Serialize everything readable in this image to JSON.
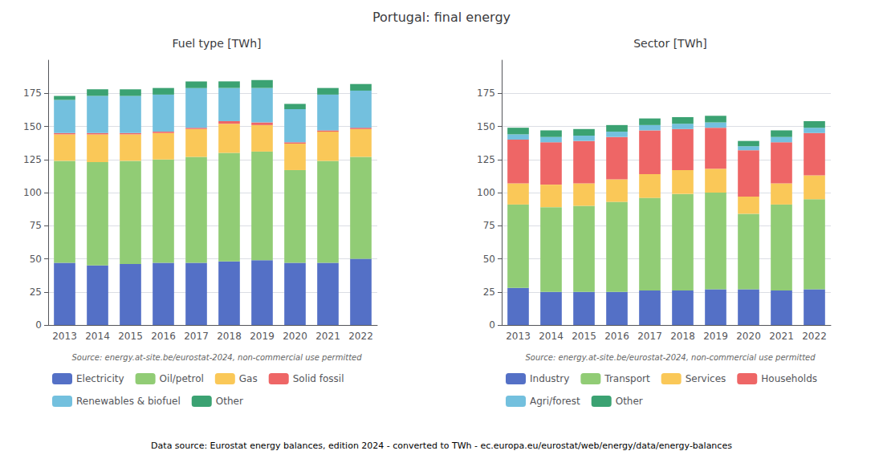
{
  "title": "Portugal: final energy",
  "footer": "Data source: Eurostat energy balances, edition 2024 - converted to TWh - ec.europa.eu/eurostat/web/energy/data/energy-balances",
  "chart_data": [
    {
      "type": "bar",
      "stacked": true,
      "title": "Fuel type [TWh]",
      "annotation": "Source: energy.at-site.be/eurostat-2024, non-commercial use permitted",
      "categories": [
        "2013",
        "2014",
        "2015",
        "2016",
        "2017",
        "2018",
        "2019",
        "2020",
        "2021",
        "2022"
      ],
      "series": [
        {
          "name": "Electricity",
          "values": [
            47,
            45,
            46,
            47,
            47,
            48,
            49,
            47,
            47,
            50
          ]
        },
        {
          "name": "Oil/petrol",
          "values": [
            77,
            78,
            78,
            78,
            80,
            82,
            82,
            70,
            77,
            77
          ]
        },
        {
          "name": "Gas",
          "values": [
            20,
            21,
            20,
            20,
            21,
            22,
            20,
            20,
            22,
            21
          ]
        },
        {
          "name": "Solid fossil",
          "values": [
            1,
            1,
            1,
            1,
            1,
            2,
            2,
            1,
            1,
            1
          ]
        },
        {
          "name": "Renewables & biofuel",
          "values": [
            25,
            28,
            28,
            28,
            30,
            25,
            26,
            25,
            27,
            28
          ]
        },
        {
          "name": "Other",
          "values": [
            3,
            5,
            5,
            5,
            5,
            5,
            6,
            4,
            5,
            5
          ]
        }
      ],
      "ylim": [
        0,
        200
      ],
      "yticks": [
        0,
        25,
        50,
        75,
        100,
        125,
        150,
        175
      ],
      "grid": true,
      "legend": "bottom"
    },
    {
      "type": "bar",
      "stacked": true,
      "title": "Sector [TWh]",
      "annotation": "Source: energy.at-site.be/eurostat-2024, non-commercial use permitted",
      "categories": [
        "2013",
        "2014",
        "2015",
        "2016",
        "2017",
        "2018",
        "2019",
        "2020",
        "2021",
        "2022"
      ],
      "series": [
        {
          "name": "Industry",
          "values": [
            28,
            25,
            25,
            25,
            26,
            26,
            27,
            27,
            26,
            27
          ]
        },
        {
          "name": "Transport",
          "values": [
            63,
            64,
            65,
            68,
            70,
            73,
            73,
            57,
            65,
            68
          ]
        },
        {
          "name": "Services",
          "values": [
            16,
            17,
            17,
            17,
            18,
            18,
            18,
            13,
            16,
            18
          ]
        },
        {
          "name": "Households",
          "values": [
            33,
            32,
            32,
            32,
            33,
            31,
            31,
            35,
            31,
            32
          ]
        },
        {
          "name": "Agri/forest",
          "values": [
            4,
            4,
            4,
            4,
            4,
            4,
            4,
            3,
            4,
            4
          ]
        },
        {
          "name": "Other",
          "values": [
            5,
            5,
            5,
            5,
            5,
            5,
            5,
            4,
            5,
            5
          ]
        }
      ],
      "ylim": [
        0,
        200
      ],
      "yticks": [
        0,
        25,
        50,
        75,
        100,
        125,
        150,
        175
      ],
      "grid": true,
      "legend": "bottom"
    }
  ]
}
